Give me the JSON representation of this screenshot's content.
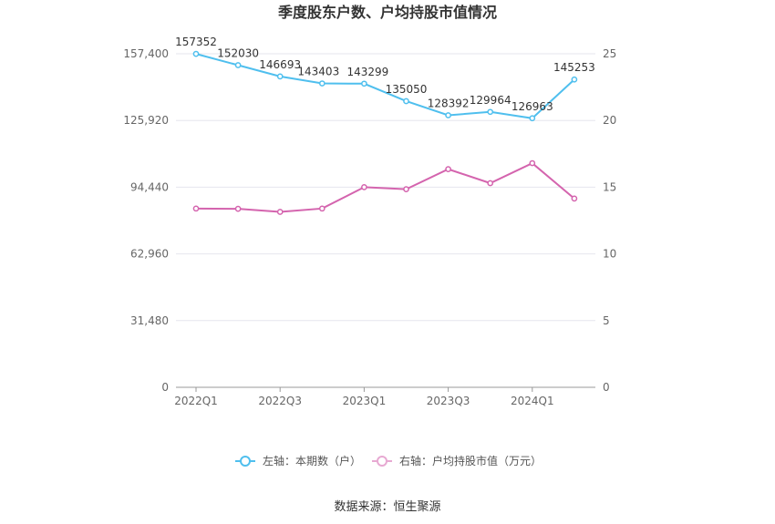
{
  "chart_data": {
    "type": "line",
    "title": "季度股东户数、户均持股市值情况",
    "x": [
      "2022Q1",
      "2022Q2",
      "2022Q3",
      "2022Q4",
      "2023Q1",
      "2023Q2",
      "2023Q3",
      "2023Q4",
      "2024Q1",
      "2024Q2"
    ],
    "x_tick_labels": [
      "2022Q1",
      "2022Q3",
      "2023Q1",
      "2023Q3",
      "2024Q1"
    ],
    "left_axis": {
      "ylim": [
        0,
        157400
      ],
      "ticks": [
        "0",
        "31,480",
        "62,960",
        "94,440",
        "125,920",
        "157,400"
      ]
    },
    "right_axis": {
      "ylim": [
        0,
        25
      ],
      "ticks": [
        "0",
        "5",
        "10",
        "15",
        "20",
        "25"
      ]
    },
    "series": [
      {
        "name": "左轴：本期数（户）",
        "axis": "left",
        "color": "#4fbfee",
        "values": [
          157352,
          152030,
          146693,
          143403,
          143299,
          135050,
          128392,
          129964,
          126963,
          145253
        ],
        "labels": [
          "157352",
          "152030",
          "146693",
          "143403",
          "143299",
          "135050",
          "128392",
          "129964",
          "126963",
          "145253"
        ]
      },
      {
        "name": "右轴：户均持股市值（万元）",
        "axis": "right",
        "color": "#d464ae",
        "values": [
          13.4,
          13.38,
          13.15,
          13.4,
          15.0,
          14.85,
          16.35,
          15.3,
          16.8,
          14.15
        ]
      }
    ],
    "grid": true,
    "legend_position": "bottom"
  },
  "source": "数据来源：恒生聚源"
}
